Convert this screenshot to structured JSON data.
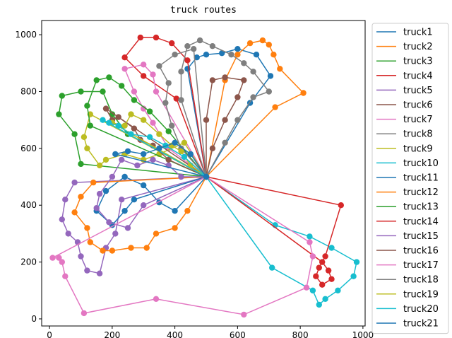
{
  "chart_data": {
    "type": "line",
    "title": "truck routes",
    "xlabel": "",
    "ylabel": "",
    "xlim": [
      -25,
      1007
    ],
    "ylim": [
      -25,
      1050
    ],
    "xticks": [
      0,
      200,
      400,
      600,
      800,
      1000
    ],
    "yticks": [
      0,
      200,
      400,
      600,
      800,
      1000
    ],
    "grid": false,
    "legend_position": "right",
    "depot": [
      500,
      500
    ],
    "series": [
      {
        "name": "truck1",
        "color": "#1f77b4",
        "points": [
          [
            500,
            500
          ],
          [
            640,
            760
          ],
          [
            705,
            855
          ],
          [
            660,
            930
          ],
          [
            600,
            950
          ],
          [
            550,
            935
          ],
          [
            500,
            930
          ],
          [
            470,
            920
          ],
          [
            440,
            880
          ],
          [
            500,
            500
          ]
        ]
      },
      {
        "name": "truck2",
        "color": "#ff7f0e",
        "points": [
          [
            500,
            500
          ],
          [
            720,
            745
          ],
          [
            810,
            795
          ],
          [
            735,
            880
          ],
          [
            715,
            930
          ],
          [
            700,
            965
          ],
          [
            680,
            980
          ],
          [
            640,
            970
          ],
          [
            600,
            930
          ],
          [
            560,
            840
          ],
          [
            500,
            500
          ]
        ]
      },
      {
        "name": "truck3",
        "color": "#2ca02c",
        "points": [
          [
            500,
            500
          ],
          [
            250,
            650
          ],
          [
            200,
            720
          ],
          [
            170,
            800
          ],
          [
            100,
            800
          ],
          [
            40,
            785
          ],
          [
            30,
            720
          ],
          [
            80,
            650
          ],
          [
            100,
            545
          ],
          [
            500,
            500
          ]
        ]
      },
      {
        "name": "truck4",
        "color": "#d62728",
        "points": [
          [
            500,
            500
          ],
          [
            405,
            775
          ],
          [
            300,
            855
          ],
          [
            240,
            920
          ],
          [
            290,
            990
          ],
          [
            340,
            990
          ],
          [
            390,
            970
          ],
          [
            440,
            910
          ],
          [
            500,
            500
          ]
        ]
      },
      {
        "name": "truck5",
        "color": "#9467bd",
        "points": [
          [
            500,
            500
          ],
          [
            230,
            420
          ],
          [
            210,
            300
          ],
          [
            180,
            250
          ],
          [
            160,
            160
          ],
          [
            120,
            170
          ],
          [
            100,
            220
          ],
          [
            90,
            270
          ],
          [
            60,
            300
          ],
          [
            40,
            350
          ],
          [
            50,
            420
          ],
          [
            80,
            480
          ],
          [
            500,
            500
          ]
        ]
      },
      {
        "name": "truck6",
        "color": "#8c564b",
        "points": [
          [
            500,
            500
          ],
          [
            520,
            600
          ],
          [
            560,
            700
          ],
          [
            600,
            780
          ],
          [
            620,
            840
          ],
          [
            560,
            850
          ],
          [
            520,
            840
          ],
          [
            500,
            700
          ],
          [
            500,
            500
          ]
        ]
      },
      {
        "name": "truck7",
        "color": "#e377c2",
        "points": [
          [
            500,
            500
          ],
          [
            380,
            600
          ],
          [
            330,
            690
          ],
          [
            300,
            740
          ],
          [
            270,
            800
          ],
          [
            240,
            880
          ],
          [
            300,
            895
          ],
          [
            330,
            860
          ],
          [
            340,
            800
          ],
          [
            500,
            500
          ]
        ]
      },
      {
        "name": "truck8",
        "color": "#7f7f7f",
        "points": [
          [
            500,
            500
          ],
          [
            560,
            620
          ],
          [
            600,
            700
          ],
          [
            650,
            780
          ],
          [
            700,
            800
          ],
          [
            650,
            870
          ],
          [
            620,
            900
          ],
          [
            580,
            930
          ],
          [
            520,
            960
          ],
          [
            480,
            980
          ],
          [
            440,
            960
          ],
          [
            420,
            870
          ],
          [
            420,
            770
          ],
          [
            500,
            500
          ]
        ]
      },
      {
        "name": "truck9",
        "color": "#bcbd22",
        "points": [
          [
            500,
            500
          ],
          [
            430,
            620
          ],
          [
            350,
            580
          ],
          [
            300,
            560
          ],
          [
            240,
            580
          ],
          [
            180,
            560
          ],
          [
            160,
            540
          ],
          [
            120,
            600
          ],
          [
            110,
            640
          ],
          [
            130,
            720
          ],
          [
            500,
            500
          ]
        ]
      },
      {
        "name": "truck10",
        "color": "#17becf",
        "points": [
          [
            500,
            500
          ],
          [
            720,
            330
          ],
          [
            830,
            290
          ],
          [
            900,
            250
          ],
          [
            980,
            200
          ],
          [
            970,
            150
          ],
          [
            920,
            100
          ],
          [
            880,
            70
          ],
          [
            860,
            50
          ],
          [
            840,
            100
          ],
          [
            710,
            180
          ],
          [
            500,
            500
          ]
        ]
      },
      {
        "name": "truck11",
        "color": "#1f77b4",
        "points": [
          [
            500,
            500
          ],
          [
            400,
            380
          ],
          [
            350,
            410
          ],
          [
            300,
            470
          ],
          [
            240,
            500
          ],
          [
            180,
            450
          ],
          [
            150,
            380
          ],
          [
            200,
            330
          ],
          [
            240,
            380
          ],
          [
            270,
            420
          ],
          [
            500,
            500
          ]
        ]
      },
      {
        "name": "truck12",
        "color": "#ff7f0e",
        "points": [
          [
            500,
            500
          ],
          [
            440,
            380
          ],
          [
            400,
            320
          ],
          [
            340,
            300
          ],
          [
            310,
            250
          ],
          [
            260,
            250
          ],
          [
            200,
            240
          ],
          [
            170,
            240
          ],
          [
            130,
            270
          ],
          [
            120,
            320
          ],
          [
            80,
            375
          ],
          [
            100,
            430
          ],
          [
            140,
            480
          ],
          [
            500,
            500
          ]
        ]
      },
      {
        "name": "truck13",
        "color": "#2ca02c",
        "points": [
          [
            500,
            500
          ],
          [
            380,
            660
          ],
          [
            320,
            730
          ],
          [
            270,
            770
          ],
          [
            230,
            820
          ],
          [
            190,
            850
          ],
          [
            150,
            840
          ],
          [
            120,
            750
          ],
          [
            130,
            680
          ],
          [
            500,
            500
          ]
        ]
      },
      {
        "name": "truck14",
        "color": "#d62728",
        "points": [
          [
            500,
            500
          ],
          [
            930,
            400
          ],
          [
            880,
            220
          ],
          [
            860,
            180
          ],
          [
            850,
            150
          ],
          [
            870,
            120
          ],
          [
            900,
            140
          ],
          [
            890,
            170
          ],
          [
            870,
            200
          ],
          [
            500,
            500
          ]
        ]
      },
      {
        "name": "truck15",
        "color": "#9467bd",
        "points": [
          [
            500,
            500
          ],
          [
            420,
            500
          ],
          [
            380,
            540
          ],
          [
            330,
            560
          ],
          [
            280,
            540
          ],
          [
            230,
            560
          ],
          [
            200,
            500
          ],
          [
            160,
            440
          ],
          [
            150,
            390
          ],
          [
            190,
            340
          ],
          [
            250,
            320
          ],
          [
            300,
            400
          ],
          [
            500,
            500
          ]
        ]
      },
      {
        "name": "truck16",
        "color": "#8c564b",
        "points": [
          [
            500,
            500
          ],
          [
            380,
            560
          ],
          [
            330,
            610
          ],
          [
            290,
            630
          ],
          [
            270,
            670
          ],
          [
            220,
            710
          ],
          [
            200,
            700
          ],
          [
            180,
            740
          ],
          [
            500,
            500
          ]
        ]
      },
      {
        "name": "truck17",
        "color": "#e377c2",
        "points": [
          [
            500,
            500
          ],
          [
            830,
            270
          ],
          [
            840,
            220
          ],
          [
            820,
            110
          ],
          [
            620,
            15
          ],
          [
            340,
            70
          ],
          [
            110,
            20
          ],
          [
            50,
            150
          ],
          [
            40,
            200
          ],
          [
            30,
            215
          ],
          [
            10,
            215
          ],
          [
            500,
            500
          ]
        ]
      },
      {
        "name": "truck18",
        "color": "#7f7f7f",
        "points": [
          [
            500,
            500
          ],
          [
            420,
            600
          ],
          [
            390,
            680
          ],
          [
            370,
            760
          ],
          [
            380,
            830
          ],
          [
            350,
            890
          ],
          [
            400,
            930
          ],
          [
            460,
            950
          ],
          [
            500,
            500
          ]
        ]
      },
      {
        "name": "truck19",
        "color": "#bcbd22",
        "points": [
          [
            500,
            500
          ],
          [
            450,
            540
          ],
          [
            420,
            590
          ],
          [
            390,
            610
          ],
          [
            350,
            650
          ],
          [
            300,
            700
          ],
          [
            260,
            720
          ],
          [
            240,
            680
          ],
          [
            200,
            690
          ],
          [
            500,
            500
          ]
        ]
      },
      {
        "name": "truck20",
        "color": "#17becf",
        "points": [
          [
            500,
            500
          ],
          [
            430,
            570
          ],
          [
            370,
            610
          ],
          [
            320,
            640
          ],
          [
            260,
            650
          ],
          [
            220,
            680
          ],
          [
            190,
            690
          ],
          [
            170,
            700
          ],
          [
            500,
            500
          ]
        ]
      },
      {
        "name": "truck21",
        "color": "#1f77b4",
        "points": [
          [
            500,
            500
          ],
          [
            450,
            580
          ],
          [
            400,
            620
          ],
          [
            350,
            600
          ],
          [
            300,
            580
          ],
          [
            250,
            590
          ],
          [
            210,
            580
          ],
          [
            500,
            500
          ]
        ]
      }
    ]
  }
}
